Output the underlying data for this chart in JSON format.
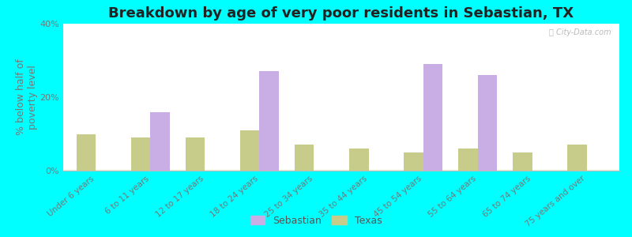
{
  "title": "Breakdown by age of very poor residents in Sebastian, TX",
  "ylabel": "% below half of\npoverty level",
  "categories": [
    "Under 6 years",
    "6 to 11 years",
    "12 to 17 years",
    "18 to 24 years",
    "25 to 34 years",
    "35 to 44 years",
    "45 to 54 years",
    "55 to 64 years",
    "65 to 74 years",
    "75 years and over"
  ],
  "sebastian_values": [
    0,
    16,
    0,
    27,
    0,
    0,
    29,
    26,
    0,
    0
  ],
  "texas_values": [
    10,
    9,
    9,
    11,
    7,
    6,
    5,
    6,
    5,
    7
  ],
  "sebastian_color": "#c9aee5",
  "texas_color": "#c8cc8a",
  "ylim": [
    0,
    40
  ],
  "yticks": [
    0,
    20,
    40
  ],
  "ytick_labels": [
    "0%",
    "20%",
    "40%"
  ],
  "bg_color": "#00ffff",
  "bar_width": 0.35,
  "title_fontsize": 13,
  "axis_label_fontsize": 9,
  "tick_fontsize": 8,
  "legend_labels": [
    "Sebastian",
    "Texas"
  ],
  "watermark": "ⓘ City-Data.com"
}
